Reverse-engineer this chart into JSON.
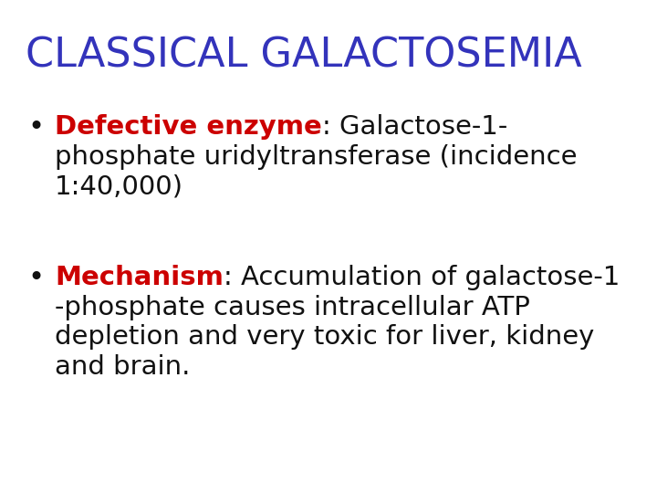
{
  "title": "CLASSICAL GALACTOSEMIA",
  "title_color": "#3333bb",
  "title_fontsize": 32,
  "background_color": "#ffffff",
  "bullet1_label": "Defective enzyme",
  "bullet1_label_color": "#cc0000",
  "bullet1_rest_line1": ": Galactose-1-",
  "bullet1_line2": "phosphate uridyltransferase (incidence",
  "bullet1_line3": "1:40,000)",
  "bullet2_label": "Mechanism",
  "bullet2_label_color": "#cc0000",
  "bullet2_rest_line1": ": Accumulation of galactose-1",
  "bullet2_line2": "-phosphate causes intracellular ATP",
  "bullet2_line3": "depletion and very toxic for liver, kidney",
  "bullet2_line4": "and brain.",
  "text_color": "#111111",
  "bullet_fontsize": 21,
  "bullet_symbol": "•",
  "bullet_color": "#111111",
  "font_family": "Comic Sans MS"
}
